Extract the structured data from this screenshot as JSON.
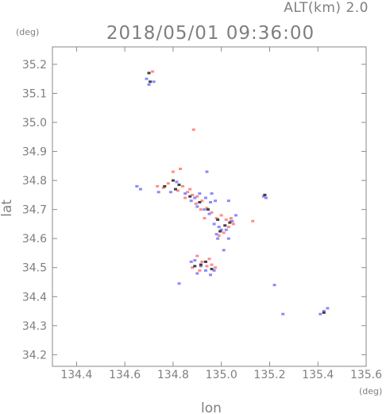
{
  "header": {
    "altitude_label": "ALT(km)  2.0",
    "datetime": "2018/05/01 09:36:00"
  },
  "chart_data": {
    "type": "scatter",
    "title": "2018/05/01 09:36:00",
    "subtitle": "ALT(km)  2.0",
    "xlabel": "lon",
    "ylabel": "lat",
    "x_unit": "(deg)",
    "y_unit": "(deg)",
    "xlim": [
      134.3,
      135.6
    ],
    "ylim": [
      34.16,
      35.26
    ],
    "x_ticks": [
      "134.4",
      "134.6",
      "134.8",
      "135.0",
      "135.2",
      "135.4",
      "135.6"
    ],
    "y_ticks": [
      "34.2",
      "34.3",
      "34.4",
      "34.5",
      "34.6",
      "34.7",
      "34.8",
      "34.9",
      "35.0",
      "35.1",
      "35.2"
    ],
    "grid": false,
    "series": [
      {
        "color": "#ff8c8c",
        "points": [
          [
            134.715,
            35.175
          ],
          [
            134.885,
            34.975
          ],
          [
            134.78,
            34.79
          ],
          [
            134.8,
            34.83
          ],
          [
            134.83,
            34.84
          ],
          [
            134.84,
            34.78
          ],
          [
            134.82,
            34.765
          ],
          [
            134.76,
            34.775
          ],
          [
            134.735,
            34.78
          ],
          [
            134.86,
            34.76
          ],
          [
            134.88,
            34.75
          ],
          [
            134.9,
            34.745
          ],
          [
            134.92,
            34.73
          ],
          [
            134.895,
            34.72
          ],
          [
            134.915,
            34.7
          ],
          [
            134.94,
            34.705
          ],
          [
            134.96,
            34.69
          ],
          [
            134.98,
            34.67
          ],
          [
            135.0,
            34.68
          ],
          [
            135.02,
            34.665
          ],
          [
            135.04,
            34.67
          ],
          [
            135.05,
            34.65
          ],
          [
            135.03,
            34.64
          ],
          [
            135.01,
            34.62
          ],
          [
            134.99,
            34.61
          ],
          [
            135.04,
            34.66
          ],
          [
            134.9,
            34.54
          ],
          [
            134.92,
            34.52
          ],
          [
            134.94,
            34.505
          ],
          [
            134.96,
            34.51
          ],
          [
            134.88,
            34.5
          ],
          [
            134.91,
            34.49
          ],
          [
            134.95,
            34.53
          ],
          [
            134.975,
            34.5
          ],
          [
            135.18,
            34.75
          ],
          [
            134.87,
            34.77
          ],
          [
            134.85,
            34.74
          ],
          [
            134.93,
            34.67
          ],
          [
            135.13,
            34.66
          ]
        ]
      },
      {
        "color": "#8a8aff",
        "points": [
          [
            134.69,
            35.15
          ],
          [
            134.72,
            35.14
          ],
          [
            134.7,
            35.13
          ],
          [
            134.65,
            34.78
          ],
          [
            134.665,
            34.77
          ],
          [
            134.74,
            34.76
          ],
          [
            134.79,
            34.76
          ],
          [
            134.815,
            34.795
          ],
          [
            134.85,
            34.755
          ],
          [
            134.875,
            34.73
          ],
          [
            134.89,
            34.74
          ],
          [
            134.91,
            34.755
          ],
          [
            134.935,
            34.74
          ],
          [
            134.955,
            34.725
          ],
          [
            134.975,
            34.73
          ],
          [
            134.9,
            34.71
          ],
          [
            134.93,
            34.7
          ],
          [
            134.95,
            34.685
          ],
          [
            134.97,
            34.65
          ],
          [
            134.99,
            34.64
          ],
          [
            135.0,
            34.63
          ],
          [
            134.985,
            34.6
          ],
          [
            135.02,
            34.63
          ],
          [
            135.03,
            34.6
          ],
          [
            135.045,
            34.66
          ],
          [
            135.06,
            34.68
          ],
          [
            134.98,
            34.615
          ],
          [
            135.01,
            34.56
          ],
          [
            134.875,
            34.52
          ],
          [
            134.89,
            34.525
          ],
          [
            134.915,
            34.505
          ],
          [
            134.935,
            34.49
          ],
          [
            134.955,
            34.475
          ],
          [
            134.97,
            34.49
          ],
          [
            134.9,
            34.48
          ],
          [
            134.825,
            34.445
          ],
          [
            134.94,
            34.83
          ],
          [
            135.175,
            34.745
          ],
          [
            135.185,
            34.74
          ],
          [
            135.22,
            34.44
          ],
          [
            135.41,
            34.34
          ],
          [
            135.425,
            34.35
          ],
          [
            135.44,
            34.36
          ],
          [
            135.255,
            34.34
          ],
          [
            135.03,
            34.73
          ],
          [
            134.96,
            34.755
          ]
        ]
      },
      {
        "color": "#404040",
        "points": [
          [
            134.705,
            35.14
          ],
          [
            134.7,
            35.17
          ],
          [
            134.825,
            34.785
          ],
          [
            134.81,
            34.77
          ],
          [
            134.87,
            34.745
          ],
          [
            134.91,
            34.725
          ],
          [
            134.945,
            34.7
          ],
          [
            134.985,
            34.665
          ],
          [
            135.015,
            34.645
          ],
          [
            135.035,
            34.655
          ],
          [
            134.995,
            34.625
          ],
          [
            134.915,
            34.51
          ],
          [
            134.935,
            34.52
          ],
          [
            134.89,
            34.505
          ],
          [
            134.96,
            34.495
          ],
          [
            135.18,
            34.75
          ],
          [
            134.8,
            34.8
          ],
          [
            134.765,
            34.78
          ],
          [
            135.425,
            34.345
          ]
        ]
      }
    ]
  }
}
